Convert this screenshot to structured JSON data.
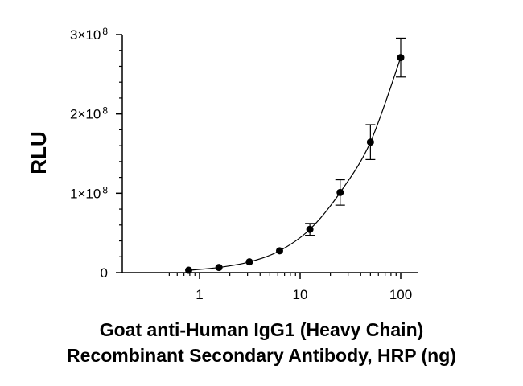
{
  "chart_data": {
    "type": "scatter",
    "xlabel": "Goat anti-Human IgG1 (Heavy Chain)",
    "xlabel_line2": "Recombinant Secondary Antibody, HRP (ng)",
    "ylabel": "RLU",
    "x_scale": "log",
    "xlim": [
      0.5,
      100
    ],
    "ylim": [
      0,
      300000000
    ],
    "x_ticks": [
      {
        "value": 1,
        "label": "1"
      },
      {
        "value": 10,
        "label": "10"
      },
      {
        "value": 100,
        "label": "100"
      }
    ],
    "y_ticks": [
      {
        "value": 0,
        "label": "0",
        "exp": ""
      },
      {
        "value": 100000000,
        "label": "1×10",
        "exp": "8"
      },
      {
        "value": 200000000,
        "label": "2×10",
        "exp": "8"
      },
      {
        "value": 300000000,
        "label": "3×10",
        "exp": "8"
      }
    ],
    "grid": false,
    "legend": "none",
    "series": [
      {
        "color": "#000000",
        "points": [
          {
            "x": 0.78,
            "y": 3000000,
            "err": 0
          },
          {
            "x": 1.56,
            "y": 6500000,
            "err": 0
          },
          {
            "x": 3.13,
            "y": 13500000,
            "err": 0
          },
          {
            "x": 6.25,
            "y": 27500000,
            "err": 0
          },
          {
            "x": 12.5,
            "y": 54500000,
            "err": 7500000
          },
          {
            "x": 25,
            "y": 101000000,
            "err": 16000000
          },
          {
            "x": 50,
            "y": 164500000,
            "err": 22000000
          },
          {
            "x": 100,
            "y": 271000000,
            "err": 24500000
          }
        ]
      }
    ],
    "fit_curve": {
      "type": "smooth",
      "color": "#000000"
    }
  }
}
